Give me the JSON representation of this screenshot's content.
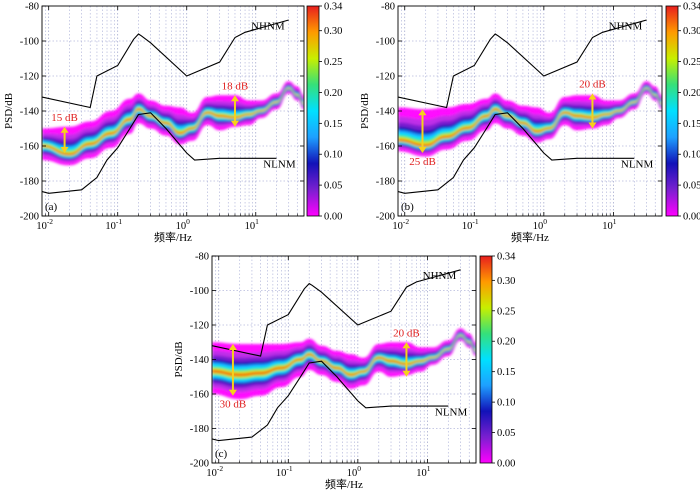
{
  "colorbar": {
    "ticks": [
      "0.34",
      "0.30",
      "0.25",
      "0.20",
      "0.15",
      "0.10",
      "0.05",
      "0.00"
    ],
    "stops": [
      "#ff00ff",
      "#7a1fd0",
      "#1212b8",
      "#1ea0ff",
      "#00e0ff",
      "#35e07a",
      "#c8ef00",
      "#ff9a00",
      "#e81e1e"
    ]
  },
  "chart_data": [
    {
      "type": "heatmap",
      "panel_label": "(a)",
      "xlabel": "频率/Hz",
      "ylabel": "PSD/dB",
      "x_scale": "log",
      "xlim": [
        0.008,
        50
      ],
      "ylim": [
        -200,
        -80
      ],
      "y_ticks": [
        "-80",
        "-100",
        "-120",
        "-140",
        "-160",
        "-180",
        "-200"
      ],
      "x_ticks": [
        {
          "base": "10",
          "exp": "-2"
        },
        {
          "base": "10",
          "exp": "-1"
        },
        {
          "base": "10",
          "exp": "0"
        },
        {
          "base": "10",
          "exp": "1"
        }
      ],
      "model_labels": {
        "high": "NHNM",
        "low": "NLNM"
      },
      "annotations": [
        {
          "text": "15 dB",
          "freq": 0.017,
          "top": -149,
          "bottom": -164,
          "label_side": "above"
        },
        {
          "text": "18 dB",
          "freq": 5.0,
          "top": -131,
          "bottom": -149,
          "label_side": "above"
        }
      ],
      "ppsd_mode": {
        "x": [
          0.008,
          0.02,
          0.04,
          0.08,
          0.15,
          0.2,
          0.3,
          0.5,
          0.8,
          1.2,
          2,
          3,
          5,
          8,
          12,
          20,
          30,
          40,
          50
        ],
        "y": [
          -160,
          -165,
          -159,
          -153,
          -145,
          -139,
          -143,
          -147,
          -153,
          -150,
          -141,
          -143,
          -144,
          -142,
          -140,
          -135,
          -127,
          -131,
          -136
        ]
      },
      "ppsd_upper": {
        "x": [
          0.008,
          0.02,
          0.04,
          0.08,
          0.15,
          0.2,
          0.3,
          0.5,
          0.8,
          1.2,
          2,
          3,
          5,
          8,
          12,
          20,
          30,
          40,
          50
        ],
        "y": [
          -150,
          -149,
          -146,
          -140,
          -133,
          -130,
          -134,
          -137,
          -138,
          -141,
          -132,
          -131,
          -131,
          -134,
          -134,
          -130,
          -123,
          -126,
          -131
        ]
      },
      "ppsd_lower": {
        "x": [
          0.008,
          0.02,
          0.04,
          0.08,
          0.15,
          0.2,
          0.3,
          0.5,
          0.8,
          1.2,
          2,
          3,
          5,
          8,
          12,
          20,
          30,
          40,
          50
        ],
        "y": [
          -168,
          -171,
          -167,
          -161,
          -153,
          -147,
          -150,
          -154,
          -159,
          -157,
          -148,
          -151,
          -149,
          -148,
          -144,
          -139,
          -130,
          -134,
          -139
        ]
      }
    },
    {
      "type": "heatmap",
      "panel_label": "(b)",
      "xlabel": "频率/Hz",
      "ylabel": "PSD/dB",
      "x_scale": "log",
      "xlim": [
        0.008,
        50
      ],
      "ylim": [
        -200,
        -80
      ],
      "y_ticks": [
        "-80",
        "-100",
        "-120",
        "-140",
        "-160",
        "-180",
        "-200"
      ],
      "x_ticks": [
        {
          "base": "10",
          "exp": "-2"
        },
        {
          "base": "10",
          "exp": "-1"
        },
        {
          "base": "10",
          "exp": "0"
        },
        {
          "base": "10",
          "exp": "1"
        }
      ],
      "model_labels": {
        "high": "NHNM",
        "low": "NLNM"
      },
      "annotations": [
        {
          "text": "25 dB",
          "freq": 0.018,
          "top": -139,
          "bottom": -164,
          "label_side": "below"
        },
        {
          "text": "20 dB",
          "freq": 5.0,
          "top": -130,
          "bottom": -150,
          "label_side": "above"
        }
      ],
      "ppsd_mode": {
        "x": [
          0.008,
          0.02,
          0.04,
          0.08,
          0.15,
          0.2,
          0.3,
          0.5,
          0.8,
          1.2,
          2,
          3,
          5,
          8,
          12,
          20,
          30,
          40,
          50
        ],
        "y": [
          -157,
          -160,
          -155,
          -150,
          -143,
          -139,
          -143,
          -147,
          -152,
          -150,
          -141,
          -143,
          -144,
          -142,
          -140,
          -135,
          -127,
          -131,
          -136
        ]
      },
      "ppsd_upper": {
        "x": [
          0.008,
          0.02,
          0.04,
          0.08,
          0.15,
          0.2,
          0.3,
          0.5,
          0.8,
          1.2,
          2,
          3,
          5,
          8,
          12,
          20,
          30,
          40,
          50
        ],
        "y": [
          -138,
          -139,
          -138,
          -136,
          -133,
          -130,
          -134,
          -137,
          -138,
          -141,
          -132,
          -131,
          -131,
          -134,
          -134,
          -130,
          -123,
          -126,
          -131
        ]
      },
      "ppsd_lower": {
        "x": [
          0.008,
          0.02,
          0.04,
          0.08,
          0.15,
          0.2,
          0.3,
          0.5,
          0.8,
          1.2,
          2,
          3,
          5,
          8,
          12,
          20,
          30,
          40,
          50
        ],
        "y": [
          -163,
          -166,
          -162,
          -157,
          -151,
          -147,
          -150,
          -154,
          -158,
          -156,
          -148,
          -151,
          -150,
          -148,
          -144,
          -139,
          -130,
          -134,
          -139
        ]
      }
    },
    {
      "type": "heatmap",
      "panel_label": "(c)",
      "xlabel": "频率/Hz",
      "ylabel": "PSD/dB",
      "x_scale": "log",
      "xlim": [
        0.008,
        50
      ],
      "ylim": [
        -200,
        -80
      ],
      "y_ticks": [
        "-80",
        "-100",
        "-120",
        "-140",
        "-160",
        "-180",
        "-200"
      ],
      "x_ticks": [
        {
          "base": "10",
          "exp": "-2"
        },
        {
          "base": "10",
          "exp": "-1"
        },
        {
          "base": "10",
          "exp": "0"
        },
        {
          "base": "10",
          "exp": "1"
        }
      ],
      "model_labels": {
        "high": "NHNM",
        "low": "NLNM"
      },
      "annotations": [
        {
          "text": "30 dB",
          "freq": 0.016,
          "top": -131,
          "bottom": -161,
          "label_side": "below"
        },
        {
          "text": "20 dB",
          "freq": 5.0,
          "top": -130,
          "bottom": -150,
          "label_side": "above"
        }
      ],
      "ppsd_mode": {
        "x": [
          0.008,
          0.02,
          0.04,
          0.08,
          0.15,
          0.2,
          0.3,
          0.5,
          0.8,
          1.2,
          2,
          3,
          5,
          8,
          12,
          20,
          30,
          40,
          50
        ],
        "y": [
          -147,
          -149,
          -148,
          -145,
          -140,
          -137,
          -141,
          -145,
          -149,
          -147,
          -139,
          -141,
          -143,
          -141,
          -139,
          -134,
          -126,
          -130,
          -135
        ]
      },
      "ppsd_upper": {
        "x": [
          0.008,
          0.02,
          0.04,
          0.08,
          0.15,
          0.2,
          0.3,
          0.5,
          0.8,
          1.2,
          2,
          3,
          5,
          8,
          12,
          20,
          30,
          40,
          50
        ],
        "y": [
          -130,
          -131,
          -131,
          -131,
          -130,
          -128,
          -132,
          -135,
          -137,
          -139,
          -131,
          -130,
          -130,
          -133,
          -133,
          -129,
          -122,
          -125,
          -130
        ]
      },
      "ppsd_lower": {
        "x": [
          0.008,
          0.02,
          0.04,
          0.08,
          0.15,
          0.2,
          0.3,
          0.5,
          0.8,
          1.2,
          2,
          3,
          5,
          8,
          12,
          20,
          30,
          40,
          50
        ],
        "y": [
          -160,
          -163,
          -161,
          -156,
          -150,
          -146,
          -149,
          -153,
          -157,
          -155,
          -147,
          -150,
          -149,
          -147,
          -143,
          -138,
          -129,
          -133,
          -138
        ]
      }
    }
  ],
  "reference_models": {
    "nhnm": {
      "x": [
        0.008,
        0.04,
        0.05,
        0.1,
        0.17,
        0.2,
        0.22,
        0.3,
        1.0,
        3.0,
        5.0,
        7.0,
        30
      ],
      "y": [
        -132,
        -138,
        -120,
        -114,
        -99,
        -96,
        -97,
        -101,
        -120,
        -112,
        -98,
        -95,
        -88
      ]
    },
    "nlnm": {
      "x": [
        0.008,
        0.01,
        0.03,
        0.05,
        0.07,
        0.1,
        0.15,
        0.2,
        0.3,
        0.5,
        1.0,
        1.3,
        3,
        10,
        20
      ],
      "y": [
        -186,
        -187,
        -185,
        -178,
        -168,
        -161,
        -150,
        -142,
        -141,
        -150,
        -164,
        -168,
        -167,
        -167,
        -167
      ]
    }
  }
}
